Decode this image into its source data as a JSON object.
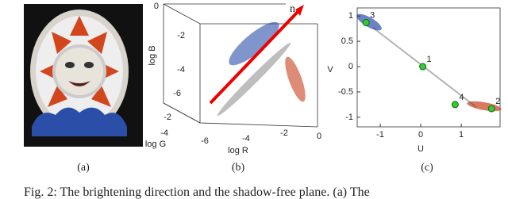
{
  "figure": {
    "panels": [
      {
        "label": "(a)"
      },
      {
        "label": "(b)",
        "n_label": "n",
        "b_axis_label": "log B",
        "g_axis_label": "log G",
        "r_axis_label": "log R",
        "b_ticks": [
          0,
          -2,
          -4,
          -6
        ],
        "g_ticks": [
          -2,
          -4
        ],
        "r_ticks": [
          -6,
          -4,
          -2,
          0
        ]
      },
      {
        "label": "(c)",
        "x_axis_label": "U",
        "y_axis_label": "V",
        "xlim": [
          -1.57,
          1.96
        ],
        "ylim": [
          -1.19,
          1.16
        ],
        "xticks": [
          -1,
          0,
          1
        ],
        "yticks": [
          1,
          0.5,
          0,
          -0.5,
          -1
        ],
        "points": [
          {
            "label": "1",
            "u": 0.05,
            "v": 0.0
          },
          {
            "label": "2",
            "u": 1.75,
            "v": -0.83
          },
          {
            "label": "3",
            "u": -1.35,
            "v": 0.87
          },
          {
            "label": "4",
            "u": 0.85,
            "v": -0.75
          }
        ]
      }
    ]
  },
  "caption": "Fig. 2: The brightening direction and the shadow-free plane. (a) The"
}
